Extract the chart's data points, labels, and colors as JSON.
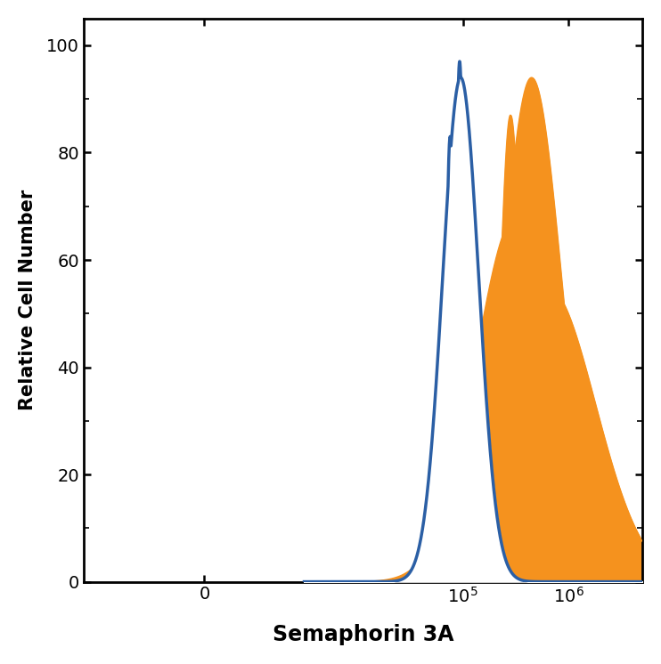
{
  "ylabel": "Relative Cell Number",
  "xlabel": "Semaphorin 3A",
  "ylim": [
    0,
    105
  ],
  "yticks": [
    0,
    20,
    40,
    60,
    80,
    100
  ],
  "blue_color": "#2B5FA5",
  "orange_color": "#F5921E",
  "bg_color": "#FFFFFF",
  "linewidth": 2.5
}
